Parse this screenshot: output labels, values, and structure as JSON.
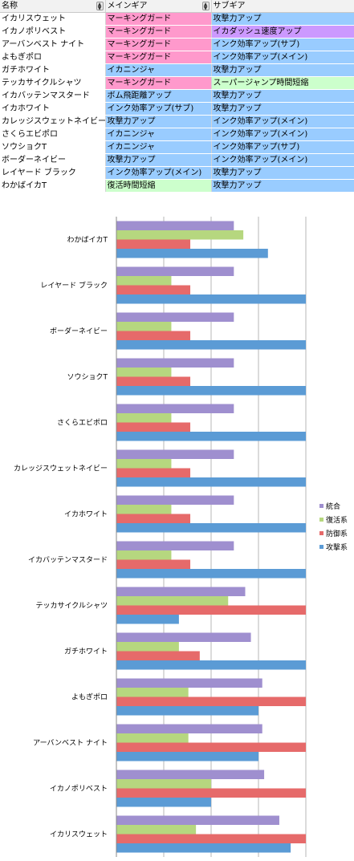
{
  "table": {
    "headers": [
      "名称",
      "メインギア",
      "サブギア"
    ],
    "rows": [
      [
        "イカリスウェット",
        "マーキングガード",
        "攻撃力アップ"
      ],
      [
        "イカノポリベスト",
        "マーキングガード",
        "イカダッシュ速度アップ"
      ],
      [
        "アーバンベスト ナイト",
        "マーキングガード",
        "インク効率アップ(サブ)"
      ],
      [
        "よもぎポロ",
        "マーキングガード",
        "インク効率アップ(メイン)"
      ],
      [
        "ガチホワイト",
        "イカニンジャ",
        "攻撃力アップ"
      ],
      [
        "テッカサイクルシャツ",
        "マーキングガード",
        "スーパージャンプ時間短縮"
      ],
      [
        "イカバッテンマスタード",
        "ボム飛距離アップ",
        "攻撃力アップ"
      ],
      [
        "イカホワイト",
        "インク効率アップ(サブ)",
        "攻撃力アップ"
      ],
      [
        "カレッジスウェットネイビー",
        "攻撃力アップ",
        "インク効率アップ(メイン)"
      ],
      [
        "さくらエビポロ",
        "イカニンジャ",
        "インク効率アップ(メイン)"
      ],
      [
        "ソウショクT",
        "イカニンジャ",
        "インク効率アップ(サブ)"
      ],
      [
        "ボーダーネイビー",
        "攻撃力アップ",
        "インク効率アップ(メイン)"
      ],
      [
        "レイヤード ブラック",
        "インク効率アップ(メイン)",
        "攻撃力アップ"
      ],
      [
        "わかばイカT",
        "復活時間短縮",
        "攻撃力アップ"
      ]
    ],
    "cell_colors": [
      [
        "#ffffff",
        "#ff99cc",
        "#99ccff"
      ],
      [
        "#ffffff",
        "#ff99cc",
        "#cc99ff"
      ],
      [
        "#ffffff",
        "#ff99cc",
        "#99ccff"
      ],
      [
        "#ffffff",
        "#ff99cc",
        "#99ccff"
      ],
      [
        "#ffffff",
        "#99ccff",
        "#99ccff"
      ],
      [
        "#ffffff",
        "#ff99cc",
        "#ccffcc"
      ],
      [
        "#ffffff",
        "#99ccff",
        "#99ccff"
      ],
      [
        "#ffffff",
        "#99ccff",
        "#99ccff"
      ],
      [
        "#ffffff",
        "#99ccff",
        "#99ccff"
      ],
      [
        "#ffffff",
        "#99ccff",
        "#99ccff"
      ],
      [
        "#ffffff",
        "#99ccff",
        "#99ccff"
      ],
      [
        "#ffffff",
        "#99ccff",
        "#99ccff"
      ],
      [
        "#ffffff",
        "#99ccff",
        "#99ccff"
      ],
      [
        "#ffffff",
        "#ccffcc",
        "#99ccff"
      ]
    ],
    "filter_icon": "dropdown-arrows-icon"
  },
  "chart_data": {
    "type": "bar",
    "orientation": "horizontal",
    "categories": [
      "わかばイカT",
      "レイヤード ブラック",
      "ボーダーネイビー",
      "ソウショクT",
      "さくらエビポロ",
      "カレッジスウェットネイビー",
      "イカホワイト",
      "イカバッテンマスタード",
      "テッカサイクルシャツ",
      "ガチホワイト",
      "よもぎポロ",
      "アーバンベスト ナイト",
      "イカノポリベスト",
      "イカリスウェット"
    ],
    "series": [
      {
        "name": "統合",
        "color": "#9f8fcf",
        "values": [
          0.62,
          0.62,
          0.62,
          0.62,
          0.62,
          0.62,
          0.62,
          0.62,
          0.68,
          0.71,
          0.77,
          0.77,
          0.78,
          0.86
        ]
      },
      {
        "name": "復活系",
        "color": "#b6d77f",
        "values": [
          0.67,
          0.29,
          0.29,
          0.29,
          0.29,
          0.29,
          0.29,
          0.29,
          0.59,
          0.33,
          0.38,
          0.38,
          0.5,
          0.42
        ]
      },
      {
        "name": "防御系",
        "color": "#e66a6a",
        "values": [
          0.39,
          0.39,
          0.39,
          0.39,
          0.39,
          0.39,
          0.39,
          0.39,
          1.0,
          0.44,
          1.0,
          1.0,
          1.0,
          1.0
        ]
      },
      {
        "name": "攻撃系",
        "color": "#5b9bd5",
        "values": [
          0.8,
          1.0,
          1.0,
          1.0,
          1.0,
          1.0,
          1.0,
          1.0,
          0.33,
          1.0,
          0.75,
          0.75,
          0.5,
          0.92
        ]
      }
    ],
    "xlim": [
      0,
      1
    ],
    "grid": true,
    "legend_position": "right",
    "legend": [
      {
        "name": "統合",
        "color": "#9f8fcf"
      },
      {
        "name": "復活系",
        "color": "#b6d77f"
      },
      {
        "name": "防御系",
        "color": "#e66a6a"
      },
      {
        "name": "攻撃系",
        "color": "#5b9bd5"
      }
    ]
  }
}
